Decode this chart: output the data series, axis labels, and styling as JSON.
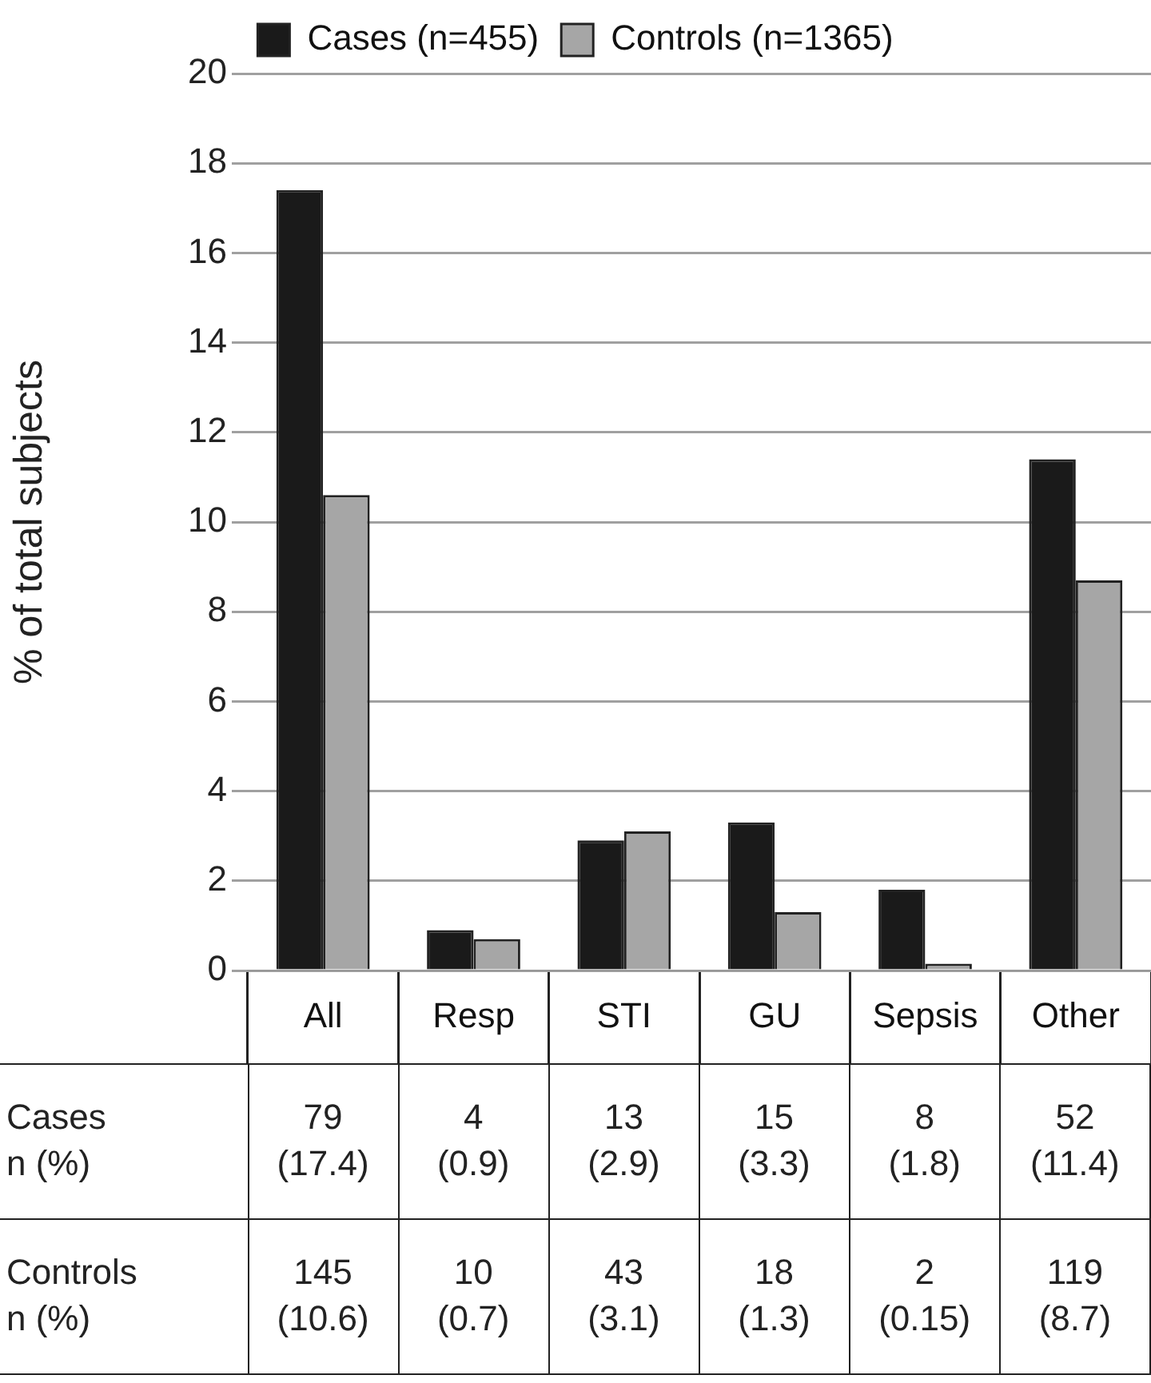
{
  "chart_data": {
    "type": "bar",
    "ylabel": "% of total subjects",
    "categories": [
      "All",
      "Resp",
      "STI",
      "GU",
      "Sepsis",
      "Other"
    ],
    "series": [
      {
        "name": "Cases (n=455)",
        "color": "#1a1a1a",
        "values": [
          17.4,
          0.9,
          2.9,
          3.3,
          1.8,
          11.4
        ],
        "value_labels": [
          "79\n(17.4)",
          "4\n(0.9)",
          "13\n(2.9)",
          "15\n(3.3)",
          "8\n(1.8)",
          "52\n(11.4)"
        ]
      },
      {
        "name": "Controls (n=1365)",
        "color": "#a6a6a6",
        "values": [
          10.6,
          0.7,
          3.1,
          1.3,
          0.15,
          8.7
        ],
        "value_labels": [
          "145\n(10.6)",
          "10\n(0.7)",
          "43\n(3.1)",
          "18\n(1.3)",
          "2\n(0.15)",
          "119\n(8.7)"
        ]
      }
    ],
    "annotations": [
      "Cases\n n (%)",
      "Controls\nn (%)"
    ],
    "ylim": [
      0,
      20
    ],
    "yticks": [
      0,
      2,
      4,
      6,
      8,
      10,
      12,
      14,
      16,
      18,
      20
    ],
    "grid": "y",
    "legend": "top"
  }
}
